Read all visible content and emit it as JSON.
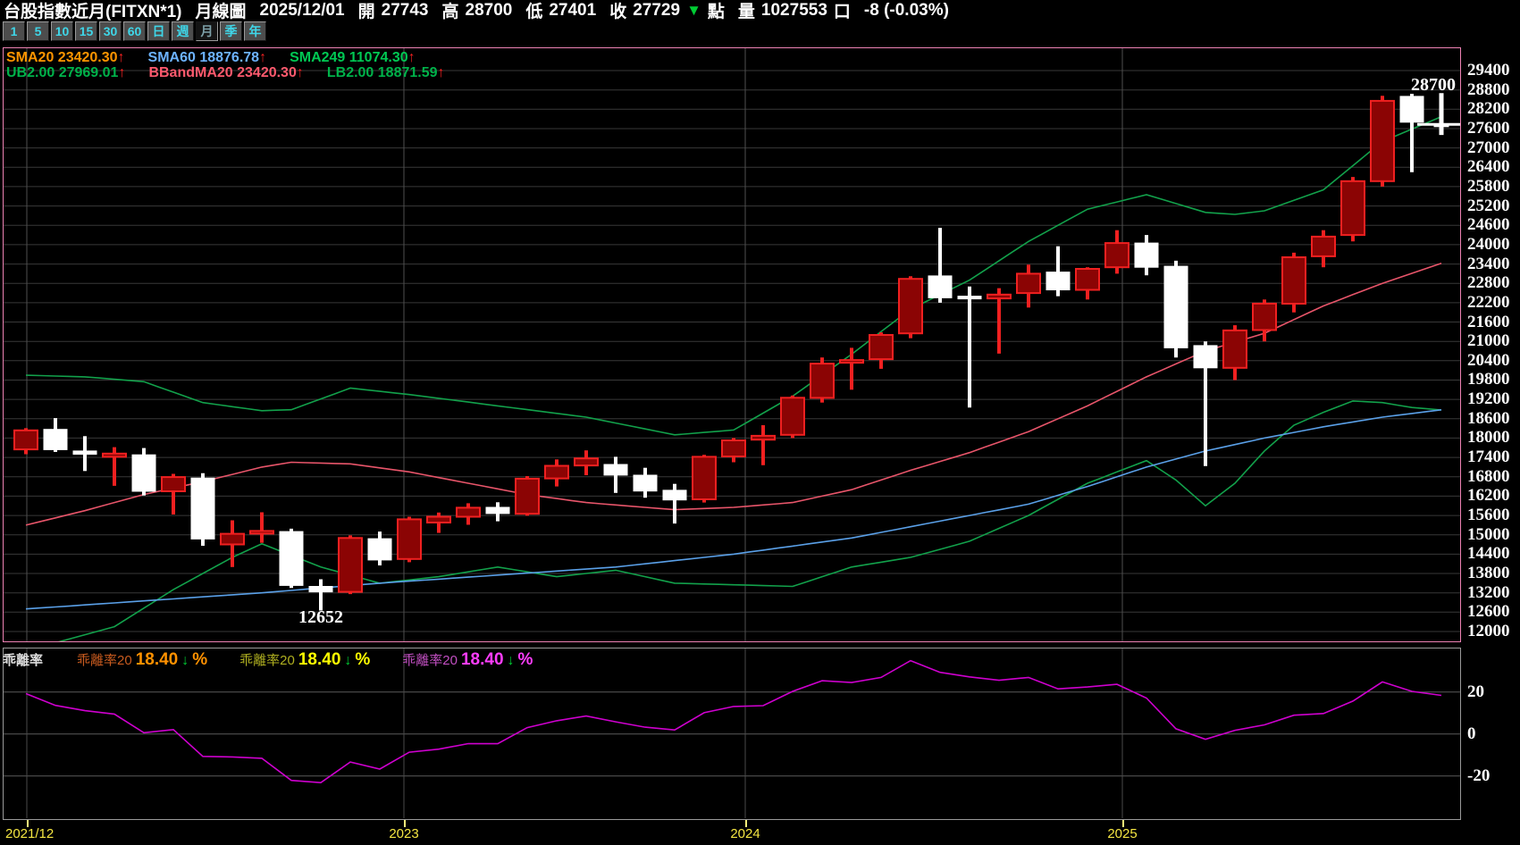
{
  "header": {
    "title": "台股指數近月(FITXN*1)",
    "period": "月線圖",
    "date": "2025/12/01",
    "open_label": "開",
    "open": "27743",
    "high_label": "高",
    "high": "28700",
    "low_label": "低",
    "low": "27401",
    "close_label": "收",
    "close": "27729",
    "close_arrow": "▼",
    "point_label": "點",
    "volume_label": "量",
    "volume": "1027553",
    "volume_unit": "口",
    "change": "-8 (-0.03%)"
  },
  "toolbar": {
    "buttons": [
      {
        "label": "1",
        "active": false
      },
      {
        "label": "5",
        "active": false
      },
      {
        "label": "10",
        "active": false
      },
      {
        "label": "15",
        "active": false
      },
      {
        "label": "30",
        "active": false
      },
      {
        "label": "60",
        "active": false
      },
      {
        "label": "日",
        "active": false
      },
      {
        "label": "週",
        "active": false
      },
      {
        "label": "月",
        "active": true
      },
      {
        "label": "季",
        "active": false
      },
      {
        "label": "年",
        "active": false
      }
    ]
  },
  "main_chart": {
    "legend_row1": [
      {
        "label": "SMA20",
        "value": "23420.30",
        "arrow": "↑",
        "color": "#ff9500"
      },
      {
        "label": "SMA60",
        "value": "18876.78",
        "arrow": "↑",
        "color": "#6db3ff"
      },
      {
        "label": "SMA249",
        "value": "11074.30",
        "arrow": "↑",
        "color": "#00c853"
      }
    ],
    "legend_row2": [
      {
        "label": "UB2.00",
        "value": "27969.01",
        "arrow": "↑",
        "color": "#00b24a"
      },
      {
        "label": "BBandMA20",
        "value": "23420.30",
        "arrow": "↑",
        "color": "#ff5a6e"
      },
      {
        "label": "LB2.00",
        "value": "18871.59",
        "arrow": "↑",
        "color": "#00b24a"
      }
    ],
    "high_annotation": "28700",
    "low_annotation": "12652"
  },
  "lower_panel": {
    "title": "乖離率",
    "legends": [
      {
        "name": "乖離率20",
        "value": "18.40",
        "arrow": "↓",
        "suffix": "%",
        "name_color": "#c95b1f",
        "value_color": "#ff9100"
      },
      {
        "name": "乖離率20",
        "value": "18.40",
        "arrow": "↓",
        "suffix": "%",
        "name_color": "#b0b020",
        "value_color": "#ffff00"
      },
      {
        "name": "乖離率20",
        "value": "18.40",
        "arrow": "↓",
        "suffix": "%",
        "name_color": "#c24fc2",
        "value_color": "#ff3dff"
      }
    ],
    "y_labels": [
      "20",
      "0",
      "-20"
    ]
  },
  "chart_data": {
    "type": "candlestick",
    "title": "台股指數近月(FITXN*1) 月線圖",
    "x_start": "2021/12",
    "x_freq": "monthly",
    "x_tick_labels": [
      "2021/12",
      "2023",
      "2024",
      "2025"
    ],
    "ylim": [
      12000,
      29400
    ],
    "y_tick_step": 600,
    "grid": true,
    "up_color": "#8b0404",
    "up_edge": "#f02020",
    "down_color": "#ffffff",
    "candles": [
      [
        17650,
        18310,
        17500,
        18240
      ],
      [
        18270,
        18620,
        17570,
        17640
      ],
      [
        17600,
        18060,
        16980,
        17500
      ],
      [
        17420,
        17720,
        16520,
        17520
      ],
      [
        17480,
        17690,
        16220,
        16350
      ],
      [
        16350,
        16890,
        15630,
        16790
      ],
      [
        16760,
        16910,
        14660,
        14870
      ],
      [
        14700,
        15450,
        14000,
        15030
      ],
      [
        15050,
        15700,
        14750,
        15120
      ],
      [
        15100,
        15190,
        13350,
        13430
      ],
      [
        13400,
        13620,
        12652,
        13230
      ],
      [
        13230,
        14980,
        13160,
        14900
      ],
      [
        14880,
        15100,
        14050,
        14220
      ],
      [
        14250,
        15560,
        14150,
        15480
      ],
      [
        15380,
        15690,
        15060,
        15560
      ],
      [
        15560,
        15980,
        15310,
        15840
      ],
      [
        15850,
        16010,
        15420,
        15660
      ],
      [
        15650,
        16820,
        15590,
        16740
      ],
      [
        16750,
        17340,
        16500,
        17140
      ],
      [
        17150,
        17620,
        16850,
        17370
      ],
      [
        17180,
        17420,
        16300,
        16850
      ],
      [
        16850,
        17080,
        16150,
        16360
      ],
      [
        16380,
        16580,
        15350,
        16080
      ],
      [
        16100,
        17480,
        16000,
        17420
      ],
      [
        17430,
        18000,
        17250,
        17930
      ],
      [
        17950,
        18400,
        17160,
        18070
      ],
      [
        18100,
        19320,
        18000,
        19250
      ],
      [
        19250,
        20500,
        19100,
        20310
      ],
      [
        20350,
        20800,
        19500,
        20420
      ],
      [
        20450,
        21280,
        20150,
        21200
      ],
      [
        21250,
        23020,
        21100,
        22940
      ],
      [
        23030,
        24520,
        22200,
        22350
      ],
      [
        22400,
        22700,
        18950,
        22320
      ],
      [
        22330,
        22650,
        20620,
        22450
      ],
      [
        22500,
        23380,
        22050,
        23100
      ],
      [
        23150,
        23950,
        22400,
        22600
      ],
      [
        22600,
        23300,
        22300,
        23250
      ],
      [
        23300,
        24450,
        23100,
        24050
      ],
      [
        24050,
        24300,
        23050,
        23300
      ],
      [
        23330,
        23500,
        20500,
        20800
      ],
      [
        20870,
        21000,
        17130,
        20180
      ],
      [
        20180,
        21500,
        19800,
        21340
      ],
      [
        21350,
        22300,
        21000,
        22170
      ],
      [
        22170,
        23750,
        21900,
        23610
      ],
      [
        23640,
        24450,
        23300,
        24250
      ],
      [
        24300,
        26100,
        24100,
        25970
      ],
      [
        25970,
        28620,
        25800,
        28460
      ],
      [
        28600,
        28680,
        26250,
        27800
      ],
      [
        27743,
        28700,
        27401,
        27729
      ]
    ],
    "current_bar": {
      "open": 27743,
      "high": 28700,
      "low": 27401,
      "close": 27729
    },
    "current_price": 27729,
    "overlays": {
      "sma20": {
        "name": "SMA20 / BBandMA20",
        "color": "#e8556a",
        "points": [
          [
            0,
            15300
          ],
          [
            2,
            15750
          ],
          [
            4,
            16250
          ],
          [
            6,
            16650
          ],
          [
            8,
            17100
          ],
          [
            9,
            17250
          ],
          [
            11,
            17200
          ],
          [
            13,
            16950
          ],
          [
            15,
            16600
          ],
          [
            17,
            16250
          ],
          [
            19,
            16000
          ],
          [
            21,
            15850
          ],
          [
            22,
            15780
          ],
          [
            24,
            15850
          ],
          [
            26,
            16000
          ],
          [
            28,
            16400
          ],
          [
            30,
            17000
          ],
          [
            32,
            17550
          ],
          [
            34,
            18200
          ],
          [
            36,
            19000
          ],
          [
            38,
            19900
          ],
          [
            40,
            20700
          ],
          [
            42,
            21250
          ],
          [
            44,
            22100
          ],
          [
            46,
            22800
          ],
          [
            48,
            23420.3
          ]
        ]
      },
      "sma60": {
        "name": "SMA60",
        "color": "#5aa0e8",
        "points": [
          [
            0,
            12700
          ],
          [
            4,
            12950
          ],
          [
            8,
            13200
          ],
          [
            12,
            13500
          ],
          [
            16,
            13750
          ],
          [
            20,
            14000
          ],
          [
            24,
            14400
          ],
          [
            28,
            14900
          ],
          [
            30,
            15250
          ],
          [
            32,
            15600
          ],
          [
            34,
            15950
          ],
          [
            36,
            16500
          ],
          [
            38,
            17100
          ],
          [
            40,
            17600
          ],
          [
            42,
            18000
          ],
          [
            44,
            18350
          ],
          [
            46,
            18650
          ],
          [
            48,
            18876.78
          ]
        ]
      },
      "ub": {
        "name": "UB2.00",
        "color": "#12a14b",
        "points": [
          [
            0,
            19950
          ],
          [
            2,
            19900
          ],
          [
            4,
            19750
          ],
          [
            6,
            19100
          ],
          [
            8,
            18850
          ],
          [
            9,
            18880
          ],
          [
            11,
            19550
          ],
          [
            13,
            19350
          ],
          [
            16,
            19000
          ],
          [
            19,
            18650
          ],
          [
            22,
            18100
          ],
          [
            24,
            18250
          ],
          [
            26,
            19300
          ],
          [
            28,
            20600
          ],
          [
            30,
            22000
          ],
          [
            32,
            22900
          ],
          [
            34,
            24100
          ],
          [
            36,
            25100
          ],
          [
            38,
            25550
          ],
          [
            40,
            25000
          ],
          [
            41,
            24940
          ],
          [
            42,
            25050
          ],
          [
            44,
            25700
          ],
          [
            46,
            27200
          ],
          [
            48,
            27969.01
          ]
        ]
      },
      "lb": {
        "name": "LB2.00",
        "color": "#12a14b",
        "points": [
          [
            0,
            11400
          ],
          [
            2,
            11900
          ],
          [
            3,
            12150
          ],
          [
            5,
            13300
          ],
          [
            7,
            14300
          ],
          [
            8,
            14720
          ],
          [
            10,
            14000
          ],
          [
            12,
            13500
          ],
          [
            14,
            13700
          ],
          [
            16,
            14000
          ],
          [
            18,
            13700
          ],
          [
            20,
            13900
          ],
          [
            22,
            13500
          ],
          [
            24,
            13450
          ],
          [
            26,
            13400
          ],
          [
            28,
            14000
          ],
          [
            30,
            14300
          ],
          [
            32,
            14800
          ],
          [
            34,
            15600
          ],
          [
            36,
            16600
          ],
          [
            38,
            17300
          ],
          [
            39,
            16700
          ],
          [
            40,
            15900
          ],
          [
            41,
            16600
          ],
          [
            42,
            17600
          ],
          [
            43,
            18400
          ],
          [
            44,
            18800
          ],
          [
            45,
            19150
          ],
          [
            46,
            19100
          ],
          [
            47,
            18950
          ],
          [
            48,
            18871.59
          ]
        ]
      }
    },
    "bias_panel": {
      "name": "乖離率20",
      "color": "#cf00cf",
      "formula": "(close - sma20) / sma20 * 100",
      "y_ticks": [
        20,
        0,
        -20
      ],
      "current": 18.4
    }
  }
}
